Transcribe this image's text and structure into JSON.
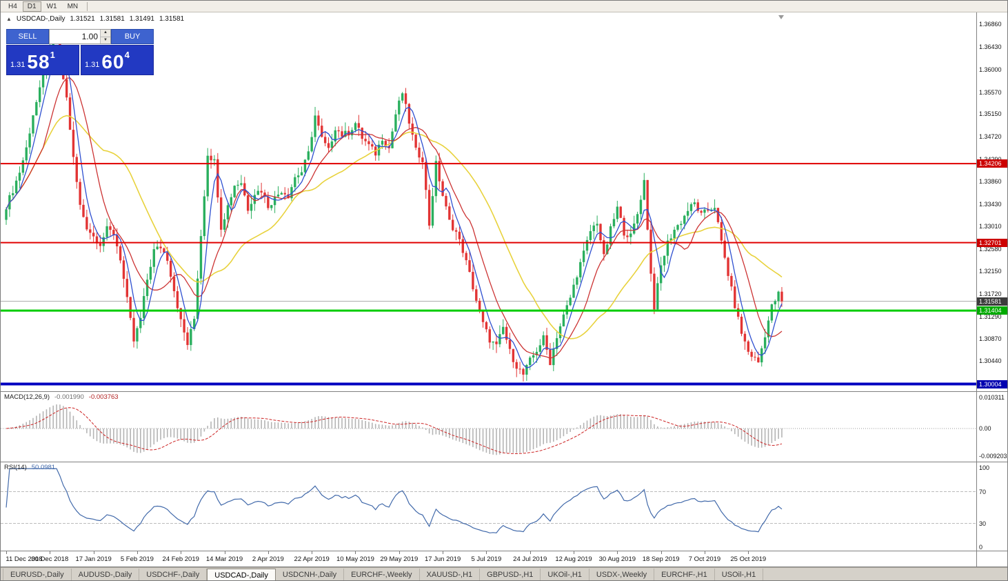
{
  "toolbar": {
    "timeframes": [
      "H4",
      "D1",
      "W1",
      "MN"
    ],
    "active": "D1"
  },
  "chart_header": {
    "collapse_icon": "▲",
    "symbol": "USDCAD-,Daily",
    "open": "1.31521",
    "high": "1.31581",
    "low": "1.31491",
    "close": "1.31581"
  },
  "trade_panel": {
    "sell_label": "SELL",
    "buy_label": "BUY",
    "volume": "1.00",
    "bid": {
      "prefix": "1.31",
      "big": "58",
      "sup": "1"
    },
    "ask": {
      "prefix": "1.31",
      "big": "60",
      "sup": "4"
    }
  },
  "chart_data": {
    "type": "candlestick",
    "symbol": "USDCAD-",
    "timeframe": "Daily",
    "bars": 232,
    "current_price": 1.31581,
    "noise": 0.0013,
    "wick": 0.0017,
    "close_keypoints": [
      [
        0,
        1.334
      ],
      [
        2,
        1.337
      ],
      [
        4,
        1.3405
      ],
      [
        6,
        1.345
      ],
      [
        8,
        1.3515
      ],
      [
        10,
        1.356
      ],
      [
        12,
        1.3615
      ],
      [
        14,
        1.365
      ],
      [
        15,
        1.3658
      ],
      [
        16,
        1.362
      ],
      [
        18,
        1.3545
      ],
      [
        20,
        1.343
      ],
      [
        22,
        1.334
      ],
      [
        24,
        1.33
      ],
      [
        26,
        1.3282
      ],
      [
        28,
        1.3268
      ],
      [
        30,
        1.3295
      ],
      [
        32,
        1.3288
      ],
      [
        34,
        1.324
      ],
      [
        36,
        1.316
      ],
      [
        38,
        1.3082
      ],
      [
        40,
        1.3125
      ],
      [
        42,
        1.32
      ],
      [
        44,
        1.3255
      ],
      [
        46,
        1.3262
      ],
      [
        48,
        1.324
      ],
      [
        50,
        1.318
      ],
      [
        52,
        1.312
      ],
      [
        54,
        1.3076
      ],
      [
        56,
        1.3125
      ],
      [
        58,
        1.3285
      ],
      [
        60,
        1.344
      ],
      [
        62,
        1.3425
      ],
      [
        64,
        1.33
      ],
      [
        66,
        1.334
      ],
      [
        68,
        1.338
      ],
      [
        70,
        1.3385
      ],
      [
        72,
        1.3335
      ],
      [
        74,
        1.3365
      ],
      [
        76,
        1.337
      ],
      [
        78,
        1.334
      ],
      [
        80,
        1.3355
      ],
      [
        82,
        1.337
      ],
      [
        84,
        1.336
      ],
      [
        86,
        1.3395
      ],
      [
        88,
        1.3405
      ],
      [
        90,
        1.344
      ],
      [
        92,
        1.3512
      ],
      [
        94,
        1.3468
      ],
      [
        96,
        1.3445
      ],
      [
        98,
        1.349
      ],
      [
        100,
        1.3475
      ],
      [
        102,
        1.348
      ],
      [
        104,
        1.3498
      ],
      [
        106,
        1.347
      ],
      [
        108,
        1.3455
      ],
      [
        110,
        1.344
      ],
      [
        112,
        1.347
      ],
      [
        114,
        1.345
      ],
      [
        116,
        1.3515
      ],
      [
        118,
        1.3556
      ],
      [
        120,
        1.35
      ],
      [
        122,
        1.3445
      ],
      [
        124,
        1.343
      ],
      [
        126,
        1.3305
      ],
      [
        128,
        1.342
      ],
      [
        130,
        1.336
      ],
      [
        132,
        1.331
      ],
      [
        134,
        1.329
      ],
      [
        136,
        1.3255
      ],
      [
        138,
        1.321
      ],
      [
        140,
        1.316
      ],
      [
        142,
        1.3115
      ],
      [
        144,
        1.3085
      ],
      [
        146,
        1.3072
      ],
      [
        148,
        1.3108
      ],
      [
        150,
        1.3062
      ],
      [
        152,
        1.3035
      ],
      [
        154,
        1.3018
      ],
      [
        156,
        1.3045
      ],
      [
        158,
        1.3065
      ],
      [
        160,
        1.3088
      ],
      [
        162,
        1.3042
      ],
      [
        164,
        1.3092
      ],
      [
        166,
        1.313
      ],
      [
        168,
        1.3165
      ],
      [
        170,
        1.321
      ],
      [
        172,
        1.325
      ],
      [
        174,
        1.3292
      ],
      [
        176,
        1.331
      ],
      [
        178,
        1.3242
      ],
      [
        180,
        1.3295
      ],
      [
        182,
        1.3336
      ],
      [
        184,
        1.329
      ],
      [
        186,
        1.3282
      ],
      [
        188,
        1.3325
      ],
      [
        190,
        1.3388
      ],
      [
        192,
        1.321
      ],
      [
        193,
        1.3148
      ],
      [
        195,
        1.3225
      ],
      [
        197,
        1.327
      ],
      [
        199,
        1.3295
      ],
      [
        201,
        1.331
      ],
      [
        203,
        1.3332
      ],
      [
        205,
        1.3345
      ],
      [
        207,
        1.3322
      ],
      [
        209,
        1.3332
      ],
      [
        211,
        1.334
      ],
      [
        213,
        1.327
      ],
      [
        215,
        1.321
      ],
      [
        217,
        1.315
      ],
      [
        219,
        1.3098
      ],
      [
        221,
        1.3062
      ],
      [
        223,
        1.3048
      ],
      [
        224,
        1.3042
      ],
      [
        226,
        1.3095
      ],
      [
        228,
        1.3148
      ],
      [
        230,
        1.3172
      ],
      [
        231,
        1.3158
      ]
    ],
    "ma_periods": {
      "fast": 5,
      "mid": 12,
      "slow": 30
    },
    "price_axis_ticks": [
      "1.36860",
      "1.36430",
      "1.36000",
      "1.35570",
      "1.35150",
      "1.34720",
      "1.34290",
      "1.33860",
      "1.33430",
      "1.33010",
      "1.32580",
      "1.32150",
      "1.31720",
      "1.31290",
      "1.30870",
      "1.30440"
    ],
    "hlines": [
      {
        "price": 1.34206,
        "label": "1.34206",
        "color": "#e00000",
        "width": 2,
        "tag_bg": "#cc0000"
      },
      {
        "price": 1.32701,
        "label": "1.32701",
        "color": "#e00000",
        "width": 2,
        "tag_bg": "#cc0000"
      },
      {
        "price": 1.31404,
        "label": "1.31404",
        "color": "#00cc00",
        "width": 3,
        "tag_bg": "#00aa00"
      },
      {
        "price": 1.30004,
        "label": "1.30004",
        "color": "#0000c0",
        "width": 4,
        "tag_bg": "#0000b0"
      }
    ],
    "current_price_line": {
      "price": 1.31581,
      "label": "1.31581",
      "color": "#aaaaaa",
      "tag_bg": "#3c3c3c"
    },
    "macd": {
      "label": "MACD(12,26,9)",
      "value_main": "-0.001990",
      "value_signal": "-0.003763",
      "params": [
        12,
        26,
        9
      ],
      "axis_ticks": [
        "0.010311",
        "0.00",
        "-0.009203"
      ]
    },
    "rsi": {
      "label": "RSI(14)",
      "value": "50.0981",
      "period": 14,
      "levels": [
        70,
        30
      ],
      "axis_ticks": [
        "100",
        "70",
        "30",
        "0"
      ]
    },
    "x_axis_dates": [
      "11 Dec 2018",
      "30 Dec 2018",
      "17 Jan 2019",
      "5 Feb 2019",
      "24 Feb 2019",
      "14 Mar 2019",
      "2 Apr 2019",
      "22 Apr 2019",
      "10 May 2019",
      "29 May 2019",
      "17 Jun 2019",
      "5 Jul 2019",
      "24 Jul 2019",
      "12 Aug 2019",
      "30 Aug 2019",
      "18 Sep 2019",
      "7 Oct 2019",
      "25 Oct 2019"
    ],
    "style": {
      "candle_up": "#2aaf5e",
      "candle_down": "#e23434",
      "ma_fast": "#2e4fd0",
      "ma_mid": "#cc3333",
      "ma_slow": "#e8d23c",
      "macd_hist": "#b4b4b4",
      "macd_signal": "#cc2222",
      "rsi_line": "#4169aa"
    }
  },
  "tabs": {
    "items": [
      "EURUSD-,Daily",
      "AUDUSD-,Daily",
      "USDCHF-,Daily",
      "USDCAD-,Daily",
      "USDCNH-,Daily",
      "EURCHF-,Weekly",
      "XAUUSD-,H1",
      "GBPUSD-,H1",
      "UKOil-,H1",
      "USDX-,Weekly",
      "EURCHF-,H1",
      "USOil-,H1"
    ],
    "active_index": 3
  }
}
